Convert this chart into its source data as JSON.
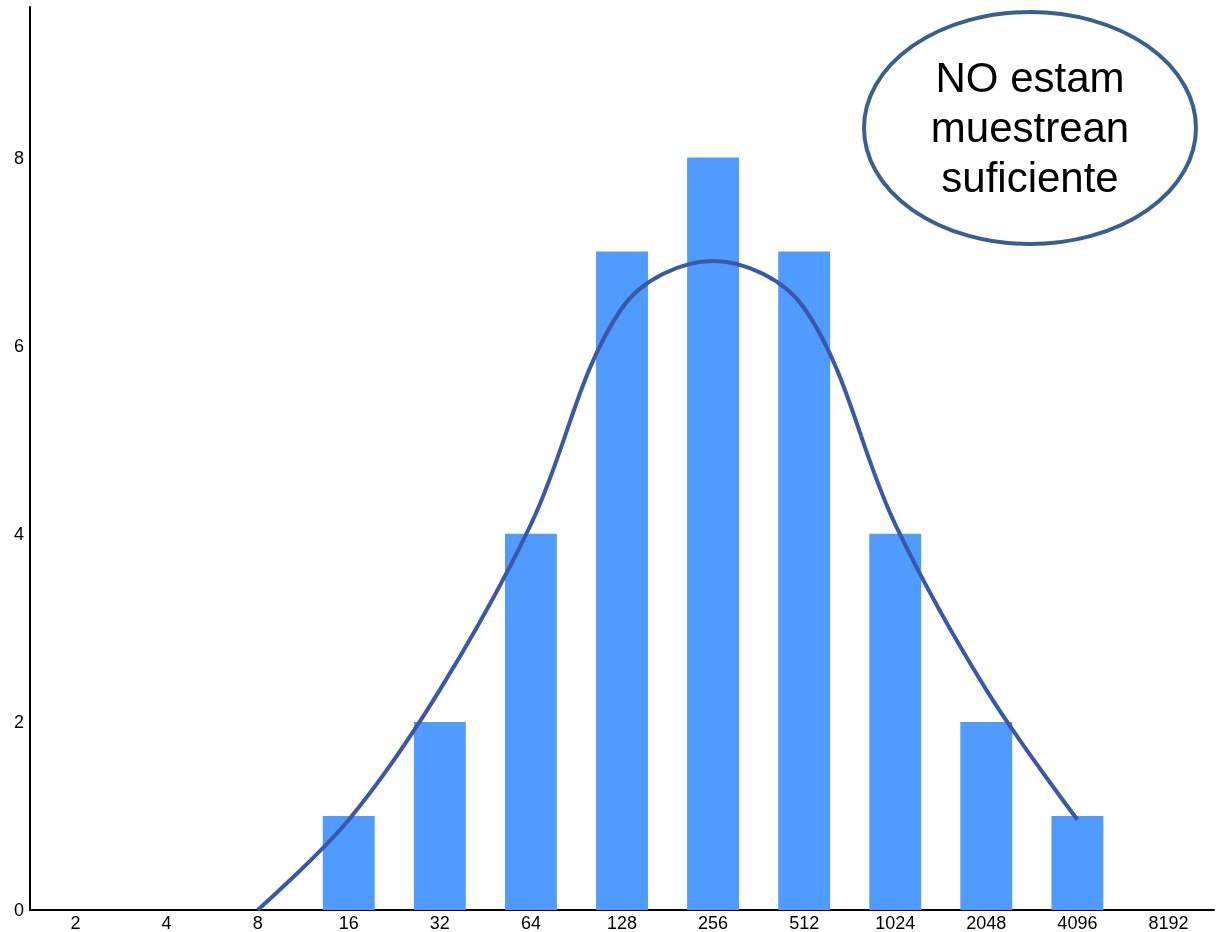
{
  "chart_data": {
    "type": "bar",
    "categories": [
      "2",
      "4",
      "8",
      "16",
      "32",
      "64",
      "128",
      "256",
      "512",
      "1024",
      "2048",
      "4096",
      "8192"
    ],
    "series": [
      {
        "color": "#4f9bff",
        "values": [
          0,
          0,
          0,
          1,
          2,
          4,
          7,
          8,
          7,
          4,
          2,
          1,
          0
        ]
      },
      {
        "type": "line",
        "color": "#3a58a8",
        "values": [
          null,
          null,
          0,
          0.96,
          2.34,
          4.1,
          6.4,
          6.9,
          6.4,
          4.1,
          2.34,
          0.96,
          null
        ]
      }
    ],
    "ylim": [
      0,
      9.6
    ],
    "yticks": [
      0,
      2,
      4,
      6,
      8
    ],
    "grid": false,
    "marker": "none",
    "annotations": [
      "NO estam\nmuestrean\nsuficiente"
    ]
  }
}
